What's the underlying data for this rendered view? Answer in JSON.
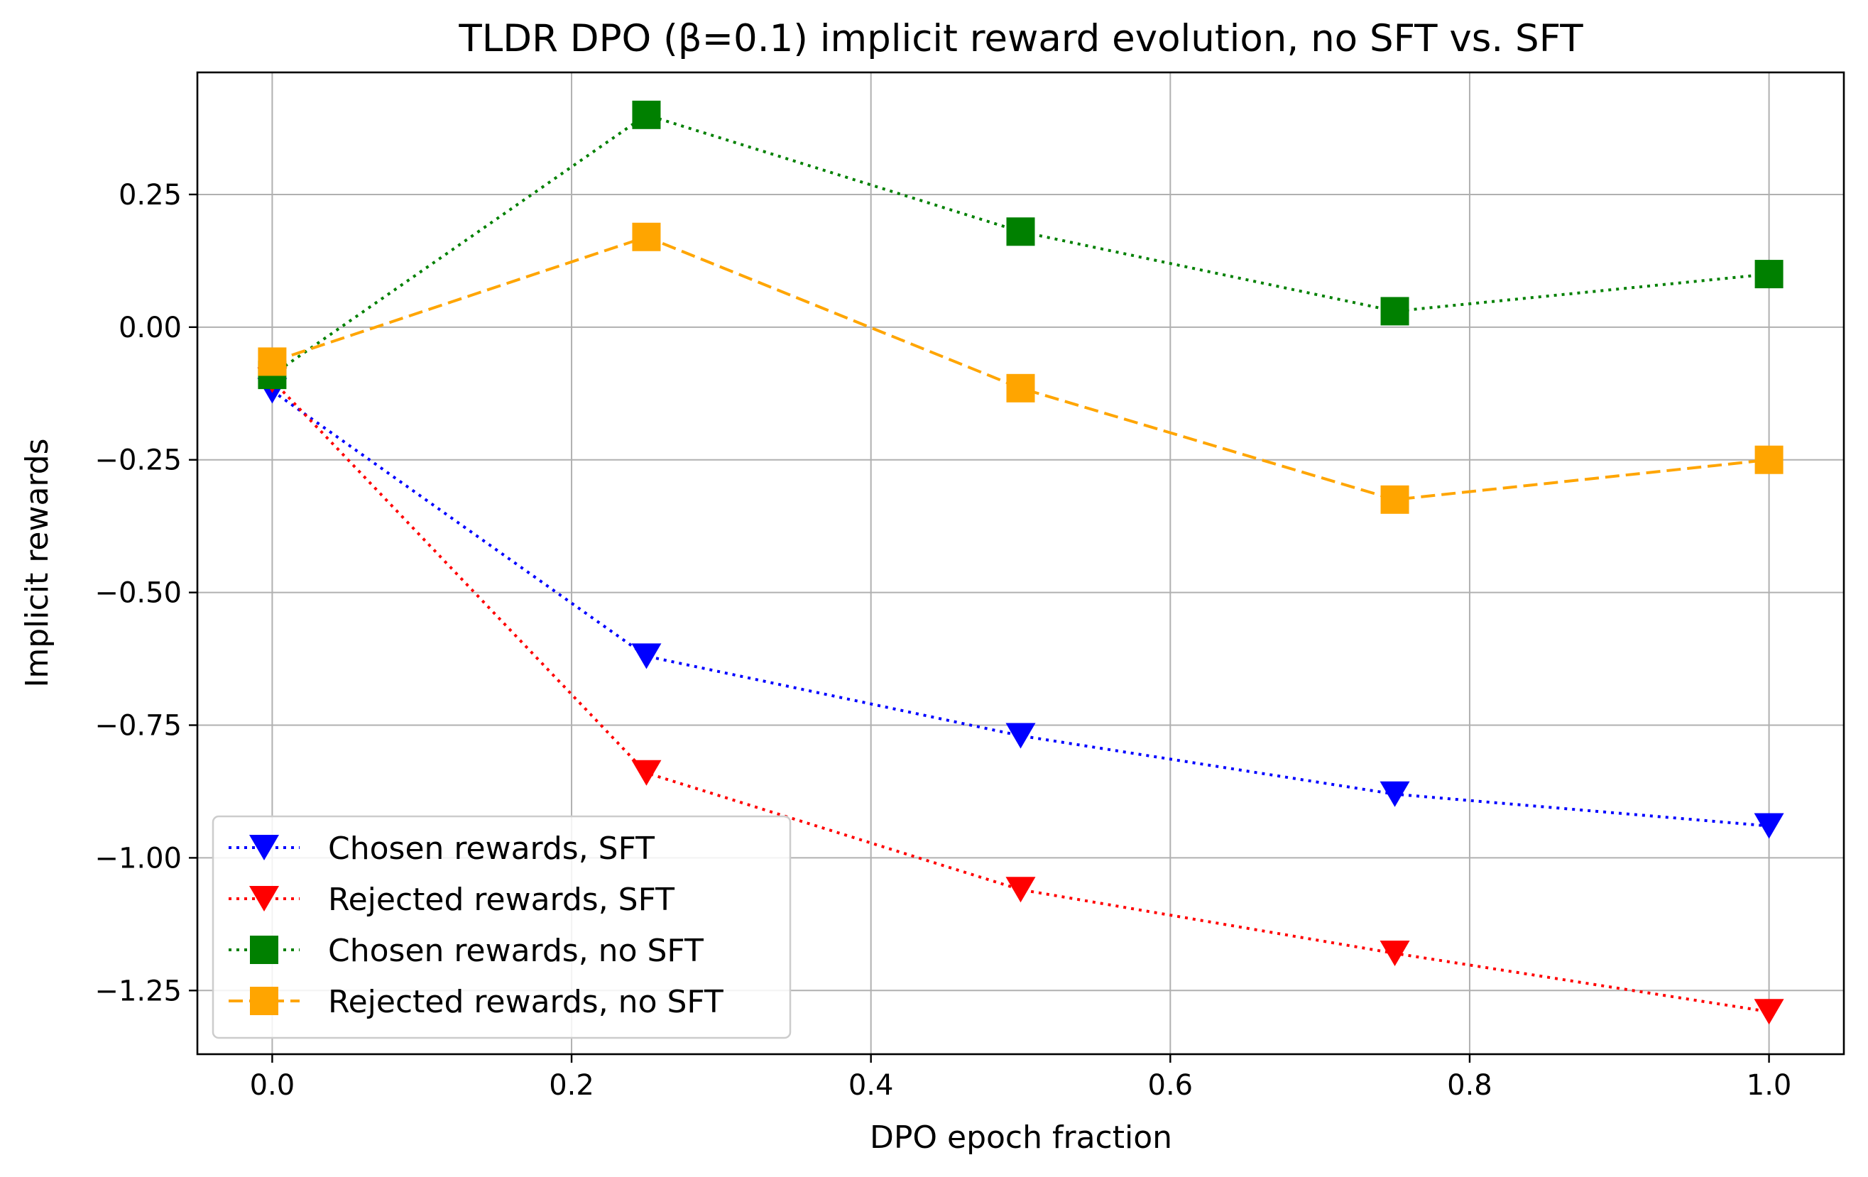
{
  "chart_data": {
    "type": "line",
    "title": "TLDR DPO (β=0.1) implicit reward evolution, no SFT vs. SFT",
    "xlabel": "DPO epoch fraction",
    "ylabel": "Implicit rewards",
    "xlim": [
      -0.05,
      1.05
    ],
    "ylim": [
      -1.37,
      0.48
    ],
    "grid": true,
    "legend_position": "lower-left",
    "x": [
      0.0,
      0.25,
      0.5,
      0.75,
      1.0
    ],
    "x_ticks": [
      0.0,
      0.2,
      0.4,
      0.6,
      0.8,
      1.0
    ],
    "x_tick_labels": [
      "0.0",
      "0.2",
      "0.4",
      "0.6",
      "0.8",
      "1.0"
    ],
    "y_ticks": [
      0.25,
      0.0,
      -0.25,
      -0.5,
      -0.75,
      -1.0,
      -1.25
    ],
    "y_tick_labels": [
      "0.25",
      "0.00",
      "−0.25",
      "−0.50",
      "−0.75",
      "−1.00",
      "−1.25"
    ],
    "series": [
      {
        "name": "Chosen rewards, SFT",
        "color": "#0000ff",
        "line_style": "dotted",
        "marker": "triangle-down",
        "values": [
          -0.12,
          -0.62,
          -0.77,
          -0.88,
          -0.94
        ]
      },
      {
        "name": "Rejected rewards, SFT",
        "color": "#ff0000",
        "line_style": "dotted",
        "marker": "triangle-down",
        "values": [
          -0.1,
          -0.84,
          -1.06,
          -1.18,
          -1.29
        ]
      },
      {
        "name": "Chosen rewards, no SFT",
        "color": "#008000",
        "line_style": "dotted",
        "marker": "square",
        "values": [
          -0.09,
          0.4,
          0.18,
          0.03,
          0.1
        ]
      },
      {
        "name": "Rejected rewards, no SFT",
        "color": "#ffa500",
        "line_style": "dashed",
        "marker": "square",
        "values": [
          -0.065,
          0.17,
          -0.115,
          -0.325,
          -0.25
        ]
      }
    ]
  }
}
